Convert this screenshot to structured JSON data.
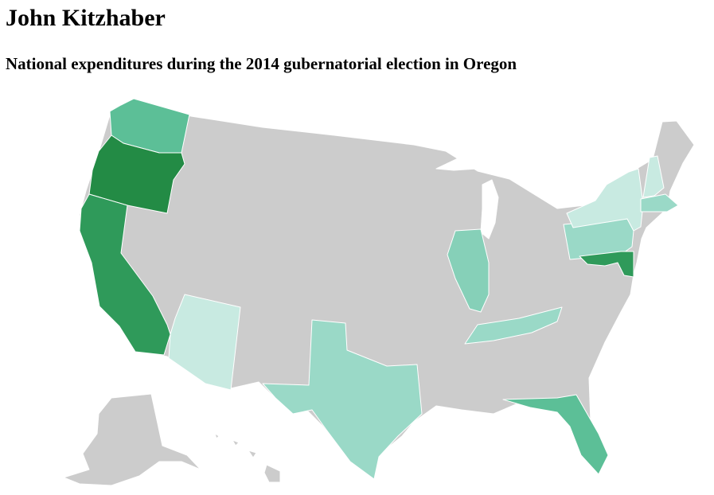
{
  "title": "John Kitzhaber",
  "subtitle": "National expenditures during the 2014 gubernatorial election in Oregon",
  "map": {
    "type": "choropleth",
    "region": "United States",
    "default_color": "#cccccc",
    "highlighted_states": [
      {
        "state": "Oregon",
        "color": "#238b45"
      },
      {
        "state": "California",
        "color": "#2f9a5a"
      },
      {
        "state": "Maryland",
        "color": "#2f9a5a"
      },
      {
        "state": "Washington",
        "color": "#5cbf97"
      },
      {
        "state": "Florida",
        "color": "#5cbf97"
      },
      {
        "state": "Illinois",
        "color": "#86d0b8"
      },
      {
        "state": "Texas",
        "color": "#9ad9c7"
      },
      {
        "state": "Tennessee",
        "color": "#9ad9c7"
      },
      {
        "state": "Pennsylvania",
        "color": "#9ad9c7"
      },
      {
        "state": "Massachusetts",
        "color": "#9ad9c7"
      },
      {
        "state": "Arizona",
        "color": "#c8eae1"
      },
      {
        "state": "New York",
        "color": "#c8eae1"
      },
      {
        "state": "New Hampshire",
        "color": "#c8eae1"
      }
    ]
  }
}
